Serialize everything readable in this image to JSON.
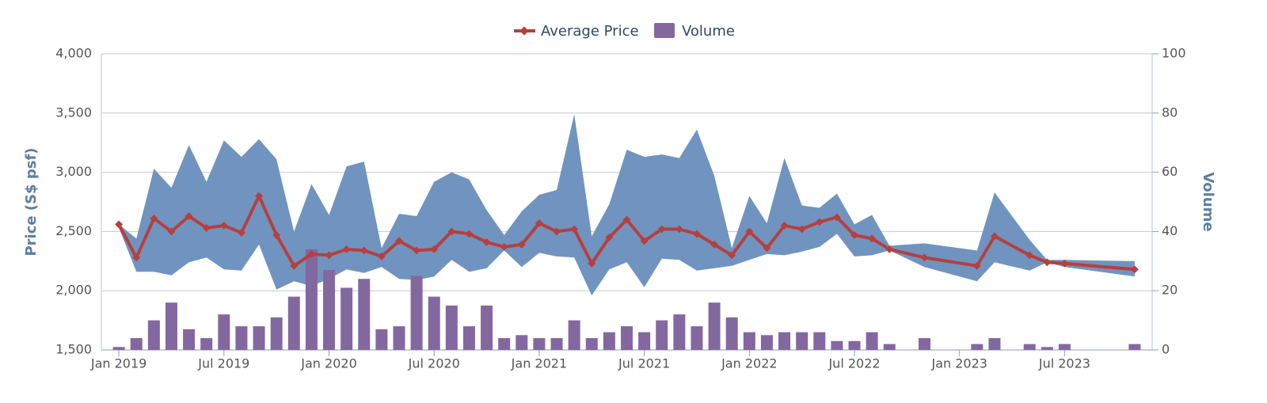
{
  "chart_data": {
    "type": "line",
    "x": [
      "2019-01",
      "2019-02",
      "2019-03",
      "2019-04",
      "2019-05",
      "2019-06",
      "2019-07",
      "2019-08",
      "2019-09",
      "2019-10",
      "2019-11",
      "2019-12",
      "2020-01",
      "2020-02",
      "2020-03",
      "2020-04",
      "2020-05",
      "2020-06",
      "2020-07",
      "2020-08",
      "2020-09",
      "2020-10",
      "2020-11",
      "2020-12",
      "2021-01",
      "2021-02",
      "2021-03",
      "2021-04",
      "2021-05",
      "2021-06",
      "2021-07",
      "2021-08",
      "2021-09",
      "2021-10",
      "2021-11",
      "2021-12",
      "2022-01",
      "2022-02",
      "2022-03",
      "2022-04",
      "2022-05",
      "2022-06",
      "2022-07",
      "2022-08",
      "2022-09",
      "2022-11",
      "2023-02",
      "2023-03",
      "2023-05",
      "2023-06",
      "2023-07",
      "2023-11"
    ],
    "xlim": [
      "2018-12",
      "2023-12"
    ],
    "xticks": [
      {
        "value": "2019-01",
        "label": "Jan 2019"
      },
      {
        "value": "2019-07",
        "label": "Jul 2019"
      },
      {
        "value": "2020-01",
        "label": "Jan 2020"
      },
      {
        "value": "2020-07",
        "label": "Jul 2020"
      },
      {
        "value": "2021-01",
        "label": "Jan 2021"
      },
      {
        "value": "2021-07",
        "label": "Jul 2021"
      },
      {
        "value": "2022-01",
        "label": "Jan 2022"
      },
      {
        "value": "2022-07",
        "label": "Jul 2022"
      },
      {
        "value": "2023-01",
        "label": "Jan 2023"
      },
      {
        "value": "2023-07",
        "label": "Jul 2023"
      }
    ],
    "ylabel": "Price (S$ psf)",
    "y2label": "Volume",
    "ylim": [
      1500,
      4000
    ],
    "yticks": [
      {
        "value": 1500,
        "label": "1,500"
      },
      {
        "value": 2000,
        "label": "2,000"
      },
      {
        "value": 2500,
        "label": "2,500"
      },
      {
        "value": 3000,
        "label": "3,000"
      },
      {
        "value": 3500,
        "label": "3,500"
      },
      {
        "value": 4000,
        "label": "4,000"
      }
    ],
    "y2lim": [
      0,
      100
    ],
    "y2ticks": [
      0,
      20,
      40,
      60,
      80,
      100
    ],
    "grid": true,
    "legend": "top",
    "range": {
      "color": "#7094bf",
      "high": [
        2560,
        2440,
        3030,
        2870,
        3230,
        2920,
        3270,
        3130,
        3280,
        3110,
        2500,
        2900,
        2640,
        3050,
        3090,
        2360,
        2650,
        2630,
        2920,
        3000,
        2940,
        2680,
        2470,
        2670,
        2810,
        2850,
        3490,
        2460,
        2730,
        3190,
        3130,
        3150,
        3120,
        3360,
        2970,
        2360,
        2800,
        2570,
        3120,
        2720,
        2700,
        2820,
        2560,
        2640,
        2380,
        2400,
        2340,
        2830,
        2430,
        2260,
        2260,
        2250
      ],
      "low": [
        2530,
        2160,
        2160,
        2130,
        2240,
        2280,
        2180,
        2170,
        2390,
        2010,
        2080,
        2040,
        2100,
        2180,
        2150,
        2200,
        2100,
        2090,
        2120,
        2260,
        2160,
        2190,
        2340,
        2200,
        2320,
        2290,
        2280,
        1960,
        2180,
        2240,
        2030,
        2270,
        2260,
        2170,
        2190,
        2210,
        2260,
        2310,
        2300,
        2330,
        2370,
        2480,
        2290,
        2300,
        2340,
        2200,
        2080,
        2240,
        2170,
        2240,
        2200,
        2120
      ]
    },
    "series": [
      {
        "name": "Average Price",
        "type": "line",
        "color": "#b5403f",
        "values": [
          2560,
          2280,
          2610,
          2500,
          2630,
          2530,
          2550,
          2490,
          2800,
          2470,
          2210,
          2310,
          2300,
          2350,
          2340,
          2290,
          2420,
          2340,
          2350,
          2500,
          2480,
          2410,
          2370,
          2390,
          2570,
          2500,
          2520,
          2230,
          2450,
          2600,
          2420,
          2520,
          2520,
          2480,
          2390,
          2300,
          2500,
          2360,
          2550,
          2520,
          2580,
          2620,
          2470,
          2440,
          2350,
          2280,
          2210,
          2460,
          2300,
          2240,
          2230,
          2180
        ]
      },
      {
        "name": "Volume",
        "type": "column",
        "axis": "y2",
        "color": "#8368a0",
        "values": [
          1,
          4,
          10,
          16,
          7,
          4,
          12,
          8,
          8,
          11,
          18,
          34,
          27,
          21,
          24,
          7,
          8,
          25,
          18,
          15,
          8,
          15,
          4,
          5,
          4,
          4,
          10,
          4,
          6,
          8,
          6,
          10,
          12,
          8,
          16,
          11,
          6,
          5,
          6,
          6,
          6,
          3,
          3,
          6,
          2,
          4,
          2,
          4,
          2,
          1,
          2,
          2
        ]
      }
    ]
  }
}
